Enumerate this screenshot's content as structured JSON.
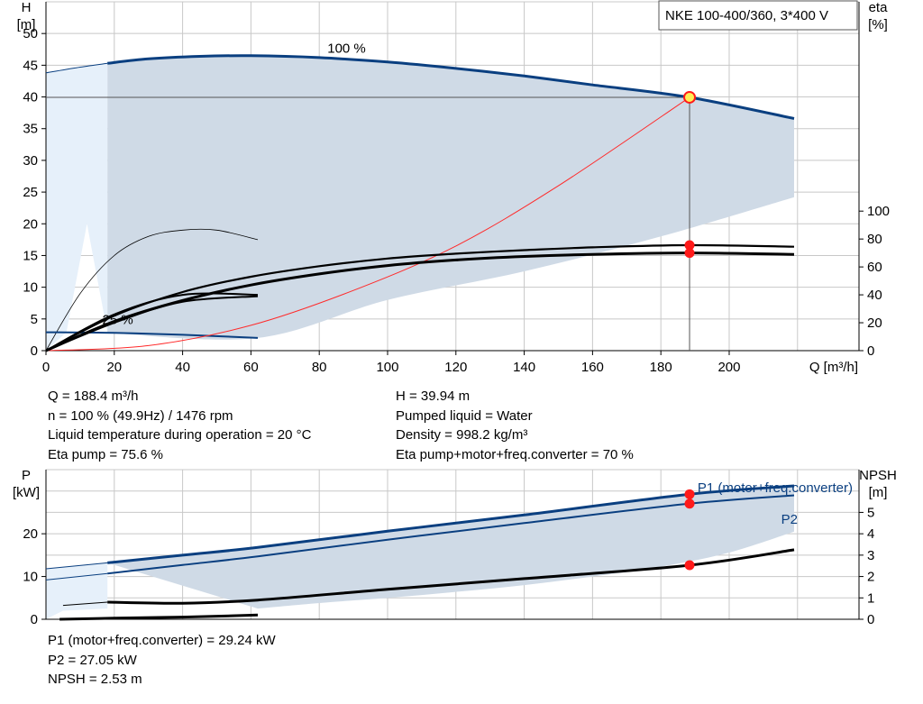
{
  "pump_label": "NKE 100-400/360, 3*400 V",
  "readouts": {
    "left": [
      "Q = 188.4 m³/h",
      "n = 100 % (49.9Hz) / 1476 rpm",
      "Liquid temperature during operation = 20 °C",
      "Eta pump = 75.6 %"
    ],
    "right": [
      "H = 39.94 m",
      "Pumped liquid = Water",
      "Density = 998.2 kg/m³",
      "Eta pump+motor+freq.converter = 70 %"
    ],
    "bottom": [
      "P1 (motor+freq.converter) = 29.24 kW",
      "P2 = 27.05 kW",
      "NPSH = 2.53 m"
    ]
  },
  "colors": {
    "curve_blue": "#0a3f80",
    "area_fill": "#cfdae6",
    "area_fill_light": "#e6f0fa",
    "system_curve": "#ff2a2a",
    "duty_marker": "#ff1a1a",
    "duty_marker_yellow": "#ffee55",
    "grid": "#c8c8c8"
  },
  "chart_data": [
    {
      "type": "line",
      "name": "Q-H / efficiency",
      "xlabel": "Q [m³/h]",
      "ylabel": "H\n[m]",
      "y2label": "eta\n[%]",
      "xlim": [
        0,
        238
      ],
      "ylim": [
        0,
        55
      ],
      "y2lim": [
        0,
        250
      ],
      "x_ticks": [
        0,
        20,
        40,
        60,
        80,
        100,
        120,
        140,
        160,
        180,
        200
      ],
      "y_ticks": [
        0,
        5,
        10,
        15,
        20,
        25,
        30,
        35,
        40,
        45,
        50
      ],
      "y2_ticks": [
        0,
        20,
        40,
        60,
        80,
        100
      ],
      "grid": true,
      "annotations": [
        {
          "text": "100 %",
          "x": 88,
          "y": 47
        },
        {
          "text": "25 %",
          "x": 21,
          "y": 4.2
        }
      ],
      "series": [
        {
          "role": "head_max",
          "x": [
            18,
            30,
            45,
            60,
            80,
            100,
            120,
            140,
            160,
            188.4,
            219
          ],
          "y": [
            45.3,
            46.0,
            46.4,
            46.5,
            46.2,
            45.5,
            44.5,
            43.3,
            41.9,
            39.94,
            36.6
          ]
        },
        {
          "role": "head_max_extension",
          "x": [
            0,
            10,
            18
          ],
          "y": [
            43.8,
            44.7,
            45.3
          ]
        },
        {
          "role": "head_min",
          "x": [
            0,
            20,
            40,
            62
          ],
          "y": [
            2.9,
            2.8,
            2.5,
            2.0
          ]
        },
        {
          "role": "head_thin_low_speed",
          "x": [
            0,
            10,
            20,
            30,
            40,
            50,
            62
          ],
          "y": [
            0,
            9,
            15,
            18,
            19,
            19,
            17.5
          ]
        },
        {
          "role": "eta_pump",
          "axis": "y2",
          "x": [
            0,
            20,
            40,
            60,
            80,
            100,
            120,
            140,
            160,
            188.4,
            219
          ],
          "y": [
            0,
            25,
            42,
            53,
            60.5,
            66,
            69.5,
            72,
            74,
            75.6,
            74.5
          ]
        },
        {
          "role": "eta_total",
          "axis": "y2",
          "x": [
            0,
            20,
            40,
            60,
            80,
            100,
            120,
            140,
            160,
            188.4,
            219
          ],
          "y": [
            0,
            21,
            36,
            47,
            55,
            61,
            65,
            67.5,
            69,
            70,
            69
          ]
        },
        {
          "role": "eta_pump_low_speed",
          "axis": "y2",
          "x": [
            0,
            20,
            40,
            62
          ],
          "y": [
            0,
            26,
            40,
            40
          ]
        },
        {
          "role": "eta_total_low_speed",
          "axis": "y2",
          "x": [
            0,
            20,
            40,
            62
          ],
          "y": [
            0,
            20,
            35,
            39
          ]
        },
        {
          "role": "system_curve",
          "x": [
            0,
            30,
            60,
            90,
            120,
            150,
            188.4
          ],
          "y": [
            0,
            0.8,
            4.0,
            9.5,
            16.5,
            26.0,
            39.94
          ]
        }
      ],
      "operating_area": {
        "upper": {
          "x": [
            18,
            45,
            60,
            100,
            140,
            188.4,
            219
          ],
          "y": [
            45.3,
            46.4,
            46.5,
            45.5,
            43.3,
            39.94,
            36.6
          ]
        },
        "lower": {
          "x": [
            219,
            180,
            140,
            100,
            62,
            18
          ],
          "y": [
            24.2,
            18.0,
            12.5,
            8.0,
            2.0,
            2.8
          ]
        }
      },
      "operating_area_light": {
        "upper": {
          "x": [
            0,
            10,
            18
          ],
          "y": [
            43.8,
            44.7,
            45.3
          ]
        },
        "lower": {
          "x": [
            18,
            12,
            6,
            0
          ],
          "y": [
            2.8,
            20,
            2.9,
            0
          ]
        }
      },
      "duty_point": {
        "x": 188.4,
        "H": 39.94,
        "eta_pump": 75.6,
        "eta_total": 70
      }
    },
    {
      "type": "line",
      "name": "Power / NPSH",
      "ylabel": "P\n[kW]",
      "y2label": "NPSH\n[m]",
      "xlim": [
        0,
        238
      ],
      "ylim": [
        0,
        35
      ],
      "y2lim": [
        0,
        7
      ],
      "y_ticks": [
        0,
        10,
        20
      ],
      "y2_ticks": [
        0,
        1,
        2,
        3,
        4,
        5
      ],
      "grid": true,
      "series": [
        {
          "name": "P1 (motor+freq.converter)",
          "x": [
            0,
            18,
            40,
            62,
            100,
            140,
            188.4,
            219
          ],
          "y": [
            11.8,
            13.2,
            15.0,
            16.8,
            20.6,
            24.4,
            29.24,
            31.2
          ]
        },
        {
          "name": "P2",
          "x": [
            0,
            18,
            40,
            62,
            100,
            140,
            188.4,
            219
          ],
          "y": [
            9.2,
            10.7,
            12.7,
            14.7,
            18.6,
            22.5,
            27.05,
            29.0
          ]
        },
        {
          "role": "npsh",
          "axis": "y2",
          "x": [
            18,
            40,
            62,
            100,
            140,
            188.4,
            219
          ],
          "y": [
            0.8,
            0.75,
            0.9,
            1.4,
            1.9,
            2.53,
            3.25
          ]
        },
        {
          "role": "npsh_extension",
          "axis": "y2",
          "x": [
            5,
            18
          ],
          "y": [
            0.65,
            0.8
          ]
        },
        {
          "role": "npsh_low_speed",
          "axis": "y2",
          "x": [
            4,
            20,
            40,
            62
          ],
          "y": [
            0,
            0.05,
            0.1,
            0.2
          ]
        }
      ],
      "operating_area": {
        "upper": {
          "x": [
            18,
            62,
            100,
            140,
            188.4,
            219
          ],
          "y": [
            13.2,
            16.8,
            20.6,
            24.4,
            29.24,
            31.2
          ]
        },
        "lower": {
          "x": [
            219,
            200,
            180,
            160,
            140,
            120,
            100,
            80,
            62
          ],
          "y": [
            20.5,
            15.6,
            12.3,
            10.0,
            8.0,
            6.4,
            5.0,
            3.8,
            2.5
          ]
        }
      },
      "operating_area_light": {
        "upper": {
          "x": [
            0,
            18
          ],
          "y": [
            11.8,
            13.2
          ]
        },
        "lower": {
          "x": [
            18,
            5,
            0
          ],
          "y": [
            2.5,
            2.0,
            0
          ]
        }
      },
      "duty_points": [
        {
          "x": 188.4,
          "value": 29.24
        },
        {
          "x": 188.4,
          "value": 27.05
        },
        {
          "x": 188.4,
          "npsh": 2.53
        }
      ]
    }
  ]
}
